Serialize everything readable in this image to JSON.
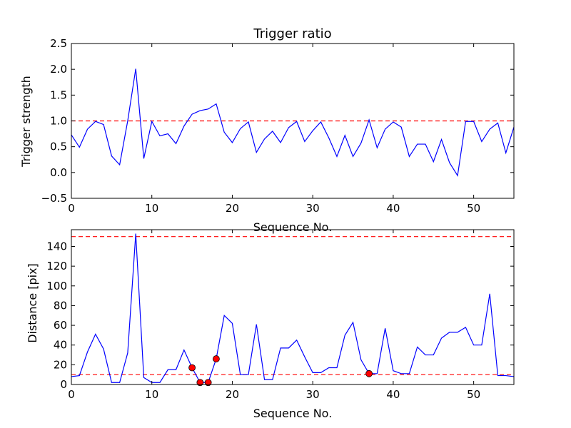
{
  "chart_data": [
    {
      "type": "line",
      "title": "Trigger ratio",
      "xlabel": "Sequence No.",
      "ylabel": "Trigger strength",
      "xlim": [
        0,
        55
      ],
      "ylim": [
        -0.5,
        2.5
      ],
      "xticks": [
        0,
        10,
        20,
        30,
        40,
        50
      ],
      "yticks": [
        -0.5,
        0.0,
        0.5,
        1.0,
        1.5,
        2.0,
        2.5
      ],
      "tick_decimals": 1,
      "line_color": "#0000ff",
      "threshold_color": "#ff0000",
      "thresholds": [
        1.0
      ],
      "series": [
        {
          "name": "trigger strength",
          "x": [
            0,
            1,
            2,
            3,
            4,
            5,
            6,
            7,
            8,
            9,
            10,
            11,
            12,
            13,
            14,
            15,
            16,
            17,
            18,
            19,
            20,
            21,
            22,
            23,
            24,
            25,
            26,
            27,
            28,
            29,
            30,
            31,
            32,
            33,
            34,
            35,
            36,
            37,
            38,
            39,
            40,
            41,
            42,
            43,
            44,
            45,
            46,
            47,
            48,
            49,
            50,
            51,
            52,
            53,
            54,
            55
          ],
          "values": [
            0.73,
            0.49,
            0.84,
            0.99,
            0.93,
            0.32,
            0.15,
            1.0,
            2.01,
            0.27,
            0.99,
            0.71,
            0.75,
            0.56,
            0.9,
            1.13,
            1.2,
            1.23,
            1.33,
            0.78,
            0.58,
            0.85,
            0.98,
            0.39,
            0.65,
            0.8,
            0.58,
            0.87,
            0.99,
            0.6,
            0.81,
            0.98,
            0.67,
            0.31,
            0.72,
            0.31,
            0.57,
            1.02,
            0.48,
            0.84,
            0.98,
            0.88,
            0.31,
            0.55,
            0.55,
            0.21,
            0.64,
            0.19,
            -0.06,
            0.99,
            0.99,
            0.6,
            0.84,
            0.96,
            0.38,
            0.88
          ]
        }
      ]
    },
    {
      "type": "line",
      "title": "",
      "xlabel": "Sequence No.",
      "ylabel": "Distance [pix]",
      "xlim": [
        0,
        55
      ],
      "ylim": [
        0,
        157
      ],
      "xticks": [
        0,
        10,
        20,
        30,
        40,
        50
      ],
      "yticks": [
        0,
        20,
        40,
        60,
        80,
        100,
        120,
        140
      ],
      "tick_decimals": 0,
      "line_color": "#0000ff",
      "threshold_color": "#ff0000",
      "marker_color": "#ff0000",
      "thresholds": [
        10,
        150
      ],
      "series": [
        {
          "name": "distance",
          "x": [
            0,
            1,
            2,
            3,
            4,
            5,
            6,
            7,
            8,
            9,
            10,
            11,
            12,
            13,
            14,
            15,
            16,
            17,
            18,
            19,
            20,
            21,
            22,
            23,
            24,
            25,
            26,
            27,
            28,
            29,
            30,
            31,
            32,
            33,
            34,
            35,
            36,
            37,
            38,
            39,
            40,
            41,
            42,
            43,
            44,
            45,
            46,
            47,
            48,
            49,
            50,
            51,
            52,
            53,
            54,
            55
          ],
          "values": [
            8,
            9,
            33,
            51,
            36,
            2,
            2,
            32,
            153,
            7,
            2,
            2,
            15,
            15,
            35,
            17,
            2,
            2,
            26,
            70,
            62,
            10,
            10,
            61,
            5,
            5,
            37,
            37,
            45,
            28,
            12,
            12,
            17,
            17,
            50,
            63,
            25,
            11,
            11,
            57,
            14,
            11,
            11,
            38,
            30,
            30,
            47,
            53,
            53,
            58,
            40,
            40,
            92,
            9,
            9,
            8
          ]
        }
      ],
      "markers": {
        "x": [
          15,
          16,
          17,
          18,
          37
        ],
        "values": [
          17,
          2,
          2,
          26,
          11
        ]
      }
    }
  ]
}
